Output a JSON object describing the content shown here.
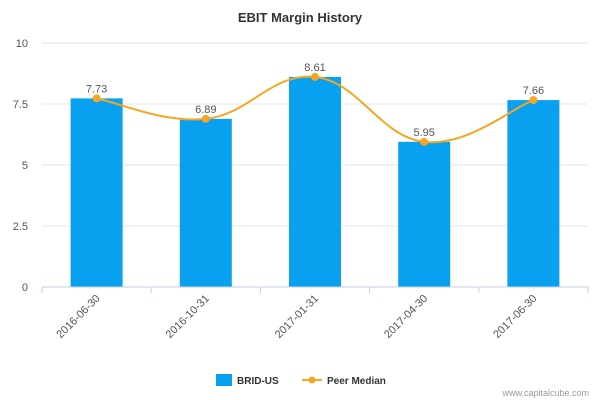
{
  "chart_data": {
    "type": "bar",
    "title": "EBIT Margin History",
    "categories": [
      "2016-06-30",
      "2016-10-31",
      "2017-01-31",
      "2017-04-30",
      "2017-06-30"
    ],
    "series": [
      {
        "name": "BRID-US",
        "kind": "bar",
        "color": "#0aa0f0",
        "values": [
          7.73,
          6.89,
          8.61,
          5.95,
          7.66
        ]
      },
      {
        "name": "Peer Median",
        "kind": "line",
        "color": "#f5a623",
        "values": [
          7.73,
          6.89,
          8.61,
          5.95,
          7.66
        ]
      }
    ],
    "data_labels": [
      "7.73",
      "6.89",
      "8.61",
      "5.95",
      "7.66"
    ],
    "ylim": [
      0,
      10
    ],
    "yticks": [
      0,
      2.5,
      5,
      7.5,
      10
    ],
    "ytick_labels": [
      "0",
      "2.5",
      "5",
      "7.5",
      "10"
    ],
    "xlabel": "",
    "ylabel": "",
    "legend": "bottom-center"
  },
  "credit": "www.capitalcube.com"
}
